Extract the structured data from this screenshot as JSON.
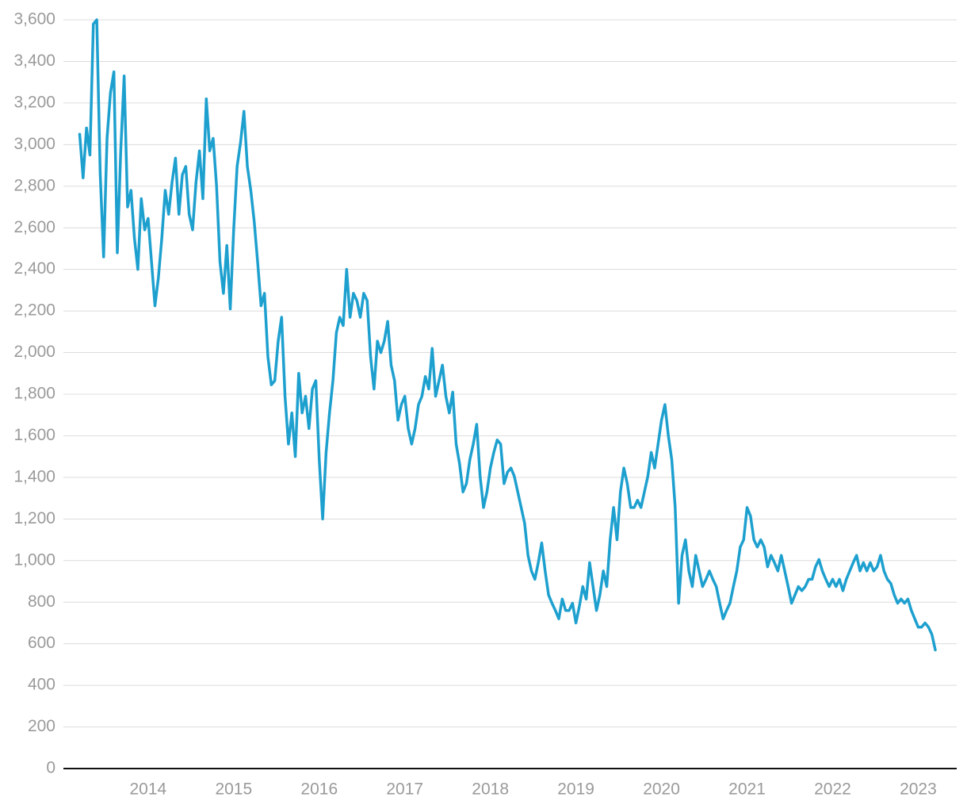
{
  "chart_data": {
    "type": "line",
    "color": "#1ea0cf",
    "grid": true,
    "xlim": [
      2013.01,
      2023.45
    ],
    "xticks": [
      2014,
      2015,
      2016,
      2017,
      2018,
      2019,
      2020,
      2021,
      2022,
      2023
    ],
    "ylim": [
      0,
      3600
    ],
    "yticks": [
      0,
      200,
      400,
      600,
      800,
      {
        "value": 1000,
        "label": "1,000"
      },
      {
        "value": 1200,
        "label": "1,200"
      },
      {
        "value": 1400,
        "label": "1,400"
      },
      {
        "value": 1600,
        "label": "1,600"
      },
      {
        "value": 1800,
        "label": "1,800"
      },
      {
        "value": 2000,
        "label": "2,000"
      },
      {
        "value": 2200,
        "label": "2,200"
      },
      {
        "value": 2400,
        "label": "2,400"
      },
      {
        "value": 2600,
        "label": "2,600"
      },
      {
        "value": 2800,
        "label": "2,800"
      },
      {
        "value": 3000,
        "label": "3,000"
      },
      {
        "value": 3200,
        "label": "3,200"
      },
      {
        "value": 3400,
        "label": "3,400"
      },
      {
        "value": 3600,
        "label": "3,600"
      }
    ],
    "x": [
      2013.2,
      2013.24,
      2013.28,
      2013.32,
      2013.36,
      2013.4,
      2013.44,
      2013.48,
      2013.52,
      2013.56,
      2013.6,
      2013.64,
      2013.68,
      2013.72,
      2013.76,
      2013.8,
      2013.84,
      2013.88,
      2013.92,
      2013.96,
      2014,
      2014.04,
      2014.08,
      2014.12,
      2014.16,
      2014.2,
      2014.24,
      2014.28,
      2014.32,
      2014.36,
      2014.4,
      2014.44,
      2014.48,
      2014.52,
      2014.56,
      2014.6,
      2014.64,
      2014.68,
      2014.72,
      2014.76,
      2014.8,
      2014.84,
      2014.88,
      2014.92,
      2014.96,
      2015,
      2015.04,
      2015.08,
      2015.12,
      2015.16,
      2015.2,
      2015.24,
      2015.28,
      2015.32,
      2015.36,
      2015.4,
      2015.44,
      2015.48,
      2015.52,
      2015.56,
      2015.6,
      2015.64,
      2015.68,
      2015.72,
      2015.76,
      2015.8,
      2015.84,
      2015.88,
      2015.92,
      2015.96,
      2016,
      2016.04,
      2016.08,
      2016.12,
      2016.16,
      2016.2,
      2016.24,
      2016.28,
      2016.32,
      2016.36,
      2016.4,
      2016.44,
      2016.48,
      2016.52,
      2016.56,
      2016.6,
      2016.64,
      2016.68,
      2016.72,
      2016.76,
      2016.8,
      2016.84,
      2016.88,
      2016.92,
      2016.96,
      2017,
      2017.04,
      2017.08,
      2017.12,
      2017.16,
      2017.2,
      2017.24,
      2017.28,
      2017.32,
      2017.36,
      2017.4,
      2017.44,
      2017.48,
      2017.52,
      2017.56,
      2017.6,
      2017.64,
      2017.68,
      2017.72,
      2017.76,
      2017.8,
      2017.84,
      2017.88,
      2017.92,
      2017.96,
      2018,
      2018.04,
      2018.08,
      2018.12,
      2018.16,
      2018.2,
      2018.24,
      2018.28,
      2018.32,
      2018.36,
      2018.4,
      2018.44,
      2018.48,
      2018.52,
      2018.56,
      2018.6,
      2018.64,
      2018.68,
      2018.72,
      2018.76,
      2018.8,
      2018.84,
      2018.88,
      2018.92,
      2018.96,
      2019,
      2019.04,
      2019.08,
      2019.12,
      2019.16,
      2019.2,
      2019.24,
      2019.28,
      2019.32,
      2019.36,
      2019.4,
      2019.44,
      2019.48,
      2019.52,
      2019.56,
      2019.6,
      2019.64,
      2019.68,
      2019.72,
      2019.76,
      2019.8,
      2019.84,
      2019.88,
      2019.92,
      2019.96,
      2020,
      2020.04,
      2020.08,
      2020.12,
      2020.16,
      2020.2,
      2020.24,
      2020.28,
      2020.32,
      2020.36,
      2020.4,
      2020.44,
      2020.48,
      2020.52,
      2020.56,
      2020.6,
      2020.64,
      2020.68,
      2020.72,
      2020.76,
      2020.8,
      2020.84,
      2020.88,
      2020.92,
      2020.96,
      2021,
      2021.04,
      2021.08,
      2021.12,
      2021.16,
      2021.2,
      2021.24,
      2021.28,
      2021.32,
      2021.36,
      2021.4,
      2021.44,
      2021.48,
      2021.52,
      2021.56,
      2021.6,
      2021.64,
      2021.68,
      2021.72,
      2021.76,
      2021.8,
      2021.84,
      2021.88,
      2021.92,
      2021.96,
      2022,
      2022.04,
      2022.08,
      2022.12,
      2022.16,
      2022.2,
      2022.24,
      2022.28,
      2022.32,
      2022.36,
      2022.4,
      2022.44,
      2022.48,
      2022.52,
      2022.56,
      2022.6,
      2022.64,
      2022.68,
      2022.72,
      2022.76,
      2022.8,
      2022.84,
      2022.88,
      2022.92,
      2022.96,
      2023,
      2023.04,
      2023.08,
      2023.12,
      2023.16,
      2023.2
    ],
    "values": [
      3050,
      2840,
      3080,
      2950,
      3580,
      3600,
      2860,
      2460,
      3030,
      3250,
      3350,
      2480,
      2970,
      3330,
      2700,
      2780,
      2550,
      2400,
      2740,
      2590,
      2645,
      2435,
      2225,
      2360,
      2550,
      2780,
      2665,
      2820,
      2935,
      2665,
      2855,
      2895,
      2665,
      2590,
      2820,
      2970,
      2740,
      3220,
      2970,
      3030,
      2800,
      2435,
      2285,
      2515,
      2210,
      2590,
      2895,
      3010,
      3160,
      2895,
      2780,
      2630,
      2435,
      2225,
      2285,
      1980,
      1845,
      1865,
      2055,
      2170,
      1790,
      1560,
      1710,
      1500,
      1900,
      1710,
      1790,
      1635,
      1825,
      1865,
      1485,
      1200,
      1520,
      1710,
      1865,
      2095,
      2170,
      2130,
      2400,
      2170,
      2285,
      2250,
      2170,
      2285,
      2250,
      1980,
      1825,
      2055,
      2000,
      2055,
      2150,
      1940,
      1865,
      1675,
      1750,
      1790,
      1635,
      1560,
      1635,
      1750,
      1790,
      1885,
      1825,
      2020,
      1790,
      1865,
      1940,
      1790,
      1710,
      1810,
      1560,
      1465,
      1330,
      1370,
      1485,
      1560,
      1655,
      1405,
      1255,
      1330,
      1445,
      1520,
      1580,
      1560,
      1370,
      1425,
      1445,
      1405,
      1330,
      1255,
      1180,
      1025,
      950,
      910,
      990,
      1085,
      950,
      835,
      795,
      760,
      720,
      815,
      760,
      760,
      795,
      700,
      780,
      875,
      815,
      990,
      875,
      760,
      835,
      950,
      875,
      1100,
      1255,
      1100,
      1330,
      1445,
      1370,
      1255,
      1255,
      1290,
      1255,
      1330,
      1405,
      1520,
      1445,
      1560,
      1675,
      1750,
      1600,
      1485,
      1255,
      795,
      1025,
      1100,
      950,
      875,
      1025,
      950,
      875,
      910,
      950,
      910,
      875,
      795,
      720,
      760,
      795,
      875,
      950,
      1065,
      1100,
      1255,
      1215,
      1100,
      1065,
      1100,
      1065,
      970,
      1025,
      990,
      950,
      1025,
      950,
      875,
      795,
      835,
      875,
      855,
      875,
      910,
      910,
      970,
      1005,
      950,
      910,
      875,
      910,
      875,
      910,
      855,
      910,
      950,
      990,
      1025,
      950,
      990,
      950,
      990,
      950,
      970,
      1025,
      950,
      910,
      890,
      835,
      795,
      815,
      795,
      815,
      760,
      720,
      680,
      680,
      700,
      680,
      645,
      570
    ]
  }
}
